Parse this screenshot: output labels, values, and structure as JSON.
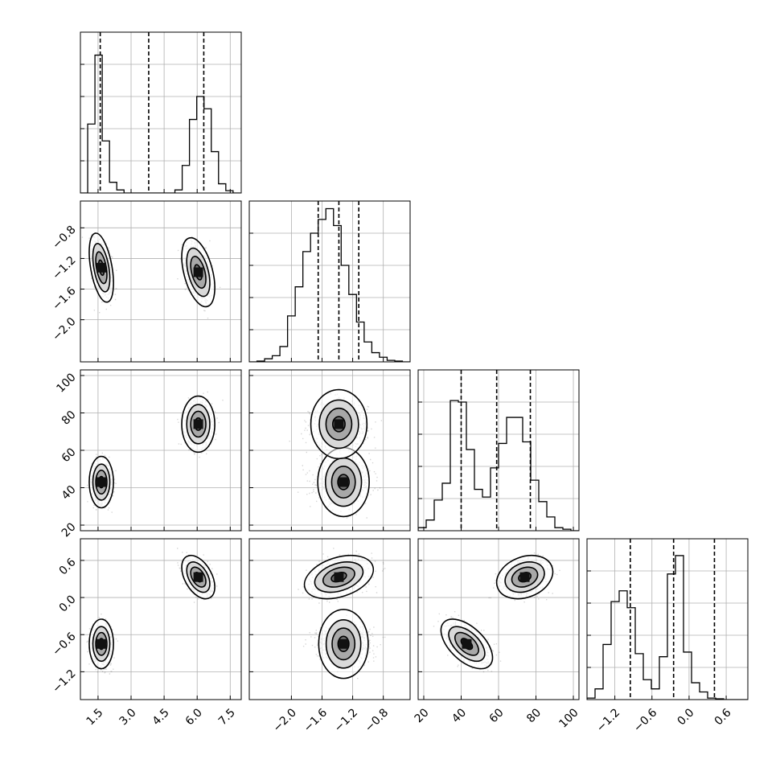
{
  "chart_data": {
    "type": "corner",
    "grid": true,
    "parameters": [
      {
        "range": [
          0.7,
          8.0
        ],
        "ticks": [
          1.5,
          3.0,
          4.5,
          6.0,
          7.5
        ],
        "tick_labels": [
          "1.5",
          "3.0",
          "4.5",
          "6.0",
          "7.5"
        ],
        "quantiles": [
          1.6,
          3.8,
          6.3
        ],
        "hist_x0": 0.7,
        "hist_dx": 0.33,
        "hist": [
          0,
          0.45,
          0.9,
          0.34,
          0.07,
          0.02,
          0,
          0,
          0,
          0,
          0,
          0,
          0,
          0.02,
          0.18,
          0.48,
          0.63,
          0.55,
          0.27,
          0.06,
          0.015,
          0
        ]
      },
      {
        "range": [
          -2.55,
          -0.45
        ],
        "ticks": [
          -2.0,
          -1.6,
          -1.2,
          -0.8
        ],
        "tick_labels": [
          "−2.0",
          "−1.6",
          "−1.2",
          "−0.8"
        ],
        "quantiles": [
          -1.65,
          -1.38,
          -1.12
        ],
        "hist_x0": -2.55,
        "hist_dx": 0.1,
        "hist": [
          0,
          0.005,
          0.02,
          0.04,
          0.1,
          0.3,
          0.49,
          0.72,
          0.84,
          0.93,
          1.0,
          0.89,
          0.63,
          0.44,
          0.26,
          0.13,
          0.06,
          0.03,
          0.01,
          0.005,
          0
        ]
      },
      {
        "range": [
          17,
          103
        ],
        "ticks": [
          20,
          40,
          60,
          80,
          100
        ],
        "tick_labels": [
          "20",
          "40",
          "60",
          "80",
          "100"
        ],
        "quantiles": [
          40,
          59,
          77
        ],
        "hist_x0": 17,
        "hist_dx": 4.3,
        "hist": [
          0.02,
          0.07,
          0.2,
          0.31,
          0.85,
          0.84,
          0.53,
          0.27,
          0.22,
          0.41,
          0.57,
          0.74,
          0.74,
          0.58,
          0.33,
          0.19,
          0.09,
          0.02,
          0.01,
          0
        ]
      },
      {
        "range": [
          -1.65,
          0.95
        ],
        "ticks": [
          -1.2,
          -0.6,
          0.0,
          0.6
        ],
        "tick_labels": [
          "−1.2",
          "−0.6",
          "0.0",
          "0.6"
        ],
        "quantiles": [
          -0.95,
          -0.25,
          0.41
        ],
        "hist_x0": -1.65,
        "hist_dx": 0.13,
        "hist": [
          0.01,
          0.07,
          0.36,
          0.64,
          0.71,
          0.6,
          0.3,
          0.13,
          0.07,
          0.28,
          0.82,
          0.94,
          0.31,
          0.11,
          0.05,
          0.01,
          0.005,
          0,
          0,
          0
        ]
      }
    ],
    "modes": [
      {
        "center": [
          1.65,
          -1.32,
          43,
          -0.75
        ],
        "sigma": [
          0.22,
          0.18,
          5.5,
          0.16
        ]
      },
      {
        "center": [
          6.05,
          -1.38,
          74,
          0.33
        ],
        "sigma": [
          0.3,
          0.18,
          6.0,
          0.14
        ]
      }
    ],
    "pair_rho": {
      "1,0": [
        -0.45,
        -0.45
      ],
      "2,0": [
        0.0,
        0.0
      ],
      "2,1": [
        0.0,
        0.0
      ],
      "3,0": [
        0.0,
        -0.45
      ],
      "3,1": [
        0.0,
        0.35
      ],
      "3,2": [
        -0.55,
        0.25
      ]
    }
  }
}
